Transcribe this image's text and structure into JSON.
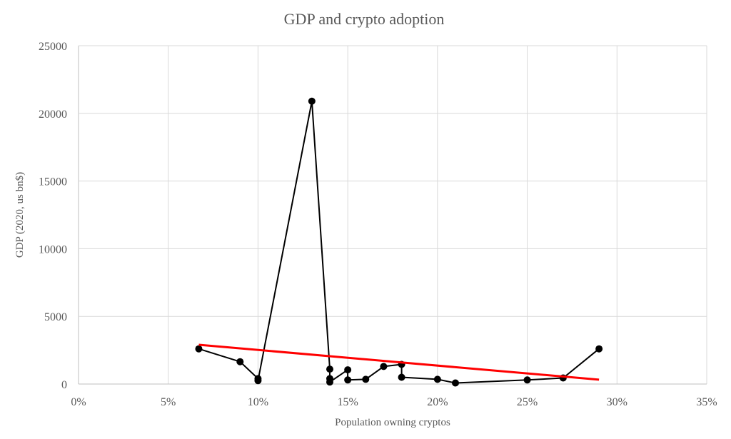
{
  "chart_data": {
    "type": "line",
    "title": "GDP and crypto adoption",
    "xlabel": "Population owning cryptos",
    "ylabel": "GDP  (2020, us bn$)",
    "xlim": [
      0,
      0.35
    ],
    "ylim": [
      0,
      25000
    ],
    "x_ticks": [
      "0%",
      "5%",
      "10%",
      "15%",
      "20%",
      "25%",
      "30%",
      "35%"
    ],
    "y_ticks": [
      "0",
      "5000",
      "10000",
      "15000",
      "20000",
      "25000"
    ],
    "grid": true,
    "series": [
      {
        "color": "#000000",
        "marker": "circle",
        "points": [
          [
            0.067,
            2600
          ],
          [
            0.09,
            1650
          ],
          [
            0.1,
            400
          ],
          [
            0.1,
            250
          ],
          [
            0.13,
            20900
          ],
          [
            0.14,
            1100
          ],
          [
            0.14,
            400
          ],
          [
            0.14,
            150
          ],
          [
            0.15,
            1050
          ],
          [
            0.15,
            300
          ],
          [
            0.16,
            350
          ],
          [
            0.17,
            1300
          ],
          [
            0.18,
            1450
          ],
          [
            0.18,
            500
          ],
          [
            0.2,
            350
          ],
          [
            0.21,
            80
          ],
          [
            0.25,
            300
          ],
          [
            0.27,
            450
          ],
          [
            0.29,
            2600
          ]
        ]
      },
      {
        "color": "#ff0000",
        "marker": "none",
        "points": [
          [
            0.067,
            2900
          ],
          [
            0.29,
            320
          ]
        ]
      }
    ]
  }
}
